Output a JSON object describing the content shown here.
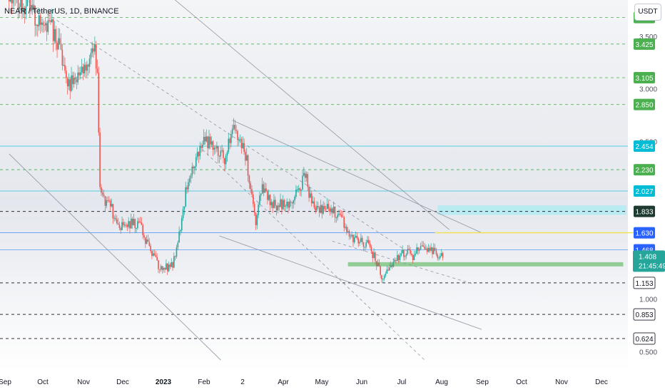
{
  "header": {
    "ticker": "NEAR / TetherUS, 1D, BINANCE",
    "currency": "USDT"
  },
  "price_axis": {
    "scale_ticks": [
      "3.500",
      "3.000",
      "2.500",
      "1.000",
      "0.500"
    ],
    "last_price": "1.408",
    "countdown": "21:45:49"
  },
  "time_axis": {
    "labels": [
      "Sep",
      "Oct",
      "Nov",
      "Dec",
      "2023",
      "Feb",
      "2",
      "Apr",
      "May",
      "Jun",
      "Jul",
      "Aug",
      "Sep",
      "Oct",
      "Nov",
      "Dec"
    ]
  },
  "chart_data": {
    "type": "candlestick",
    "title": "NEAR / TetherUS, 1D, BINANCE",
    "currency": "USDT",
    "x_range": [
      "2022-09",
      "2023-12"
    ],
    "y_range": [
      0.42,
      4.0
    ],
    "last_price": 1.408,
    "series": [
      {
        "name": "NEAR/USDT daily close (approx.)",
        "points": [
          [
            "2022-09-01",
            3.95
          ],
          [
            "2022-09-10",
            3.8
          ],
          [
            "2022-09-20",
            3.72
          ],
          [
            "2022-10-01",
            3.6
          ],
          [
            "2022-10-05",
            3.56
          ],
          [
            "2022-10-10",
            3.35
          ],
          [
            "2022-10-13",
            3.15
          ],
          [
            "2022-10-18",
            3.05
          ],
          [
            "2022-10-25",
            3.12
          ],
          [
            "2022-10-30",
            3.22
          ],
          [
            "2022-11-03",
            3.35
          ],
          [
            "2022-11-06",
            3.38
          ],
          [
            "2022-11-08",
            3.08
          ],
          [
            "2022-11-10",
            2.05
          ],
          [
            "2022-11-13",
            1.95
          ],
          [
            "2022-11-18",
            1.9
          ],
          [
            "2022-11-24",
            1.66
          ],
          [
            "2022-12-02",
            1.72
          ],
          [
            "2022-12-10",
            1.72
          ],
          [
            "2022-12-17",
            1.5
          ],
          [
            "2022-12-25",
            1.32
          ],
          [
            "2023-01-01",
            1.3
          ],
          [
            "2023-01-05",
            1.32
          ],
          [
            "2023-01-10",
            1.6
          ],
          [
            "2023-01-15",
            2.02
          ],
          [
            "2023-01-20",
            2.25
          ],
          [
            "2023-01-26",
            2.45
          ],
          [
            "2023-02-01",
            2.5
          ],
          [
            "2023-02-08",
            2.45
          ],
          [
            "2023-02-14",
            2.35
          ],
          [
            "2023-02-20",
            2.62
          ],
          [
            "2023-02-25",
            2.55
          ],
          [
            "2023-03-03",
            2.3
          ],
          [
            "2023-03-10",
            1.75
          ],
          [
            "2023-03-14",
            2.05
          ],
          [
            "2023-03-20",
            1.95
          ],
          [
            "2023-03-25",
            1.88
          ],
          [
            "2023-03-30",
            1.9
          ],
          [
            "2023-04-05",
            1.93
          ],
          [
            "2023-04-12",
            2.05
          ],
          [
            "2023-04-18",
            2.2
          ],
          [
            "2023-04-20",
            1.98
          ],
          [
            "2023-04-24",
            1.85
          ],
          [
            "2023-05-01",
            1.85
          ],
          [
            "2023-05-08",
            1.85
          ],
          [
            "2023-05-14",
            1.78
          ],
          [
            "2023-05-20",
            1.62
          ],
          [
            "2023-05-28",
            1.55
          ],
          [
            "2023-06-04",
            1.53
          ],
          [
            "2023-06-10",
            1.38
          ],
          [
            "2023-06-15",
            1.22
          ],
          [
            "2023-06-20",
            1.25
          ],
          [
            "2023-06-25",
            1.35
          ],
          [
            "2023-06-30",
            1.42
          ],
          [
            "2023-07-05",
            1.45
          ],
          [
            "2023-07-10",
            1.38
          ],
          [
            "2023-07-13",
            1.5
          ],
          [
            "2023-07-18",
            1.45
          ],
          [
            "2023-07-24",
            1.46
          ],
          [
            "2023-07-28",
            1.4
          ],
          [
            "2023-08-02",
            1.408
          ]
        ]
      }
    ],
    "horizontal_levels": [
      {
        "value": 3.677,
        "label": "3.677",
        "color": "#4caf50",
        "style": "dashed-green"
      },
      {
        "value": 3.425,
        "label": "3.425",
        "color": "#4caf50",
        "style": "dashed-green"
      },
      {
        "value": 3.105,
        "label": "3.105",
        "color": "#4caf50",
        "style": "dashed-green"
      },
      {
        "value": 2.85,
        "label": "2.850",
        "color": "#4caf50",
        "style": "dashed-green"
      },
      {
        "value": 2.454,
        "label": "2.454",
        "color": "#00bcd4",
        "style": "solid-cyan"
      },
      {
        "value": 2.23,
        "label": "2.230",
        "color": "#4caf50",
        "style": "dashed-green"
      },
      {
        "value": 2.027,
        "label": "2.027",
        "color": "#00bcd4",
        "style": "solid-cyan"
      },
      {
        "value": 1.833,
        "label": "1.833",
        "color": "#2a3b36",
        "style": "dashed-dark"
      },
      {
        "value": 1.63,
        "label": "1.630",
        "color": "#2962ff",
        "style": "solid-blue"
      },
      {
        "value": 1.468,
        "label": "1.468",
        "color": "#2962ff",
        "style": "solid-blue"
      },
      {
        "value": 1.153,
        "label": "1.153",
        "color": "#2a2e39",
        "style": "dashed-dark"
      },
      {
        "value": 0.853,
        "label": "0.853",
        "color": "#2a2e39",
        "style": "dashed-dark"
      },
      {
        "value": 0.624,
        "label": "0.624",
        "color": "#2a2e39",
        "style": "dashed-dark"
      }
    ],
    "zones": [
      {
        "from": "2023-07-28",
        "to": "2023-12-31",
        "y_low": 1.8,
        "y_high": 1.89,
        "color": "#b2ebf2"
      },
      {
        "from": "2023-05-20",
        "to": "2023-12-18",
        "y_low": 1.31,
        "y_high": 1.35,
        "color": "#81c784"
      }
    ],
    "trendlines": [
      {
        "from": [
          "2022-09-01",
          3.95
        ],
        "to": [
          "2023-07-05",
          1.45
        ],
        "style": "dashed"
      },
      {
        "from": [
          "2023-05-08",
          1.55
        ],
        "to": [
          "2023-08-25",
          1.14
        ],
        "style": "dashed"
      },
      {
        "from": [
          "2023-01-28",
          2.42
        ],
        "to": [
          "2023-07-18",
          0.42
        ],
        "style": "dashed"
      },
      {
        "from": [
          "2023-02-20",
          2.7
        ],
        "to": [
          "2023-08-31",
          1.63
        ],
        "style": "solid"
      },
      {
        "from": [
          "2023-02-10",
          1.6
        ],
        "to": [
          "2023-08-31",
          0.71
        ],
        "style": "solid"
      },
      {
        "from": [
          "2022-09-01",
          2.38
        ],
        "to": [
          "2023-02-11",
          0.42
        ],
        "style": "solid"
      },
      {
        "from": [
          "2022-12-18",
          4.05
        ],
        "to": [
          "2023-08-06",
          1.66
        ],
        "style": "solid"
      },
      {
        "from": [
          "2023-07-26",
          1.63
        ],
        "to": [
          "2023-12-31",
          1.63
        ],
        "style": "solid-yellow"
      }
    ],
    "grid": false,
    "price_axis_position": "right"
  }
}
